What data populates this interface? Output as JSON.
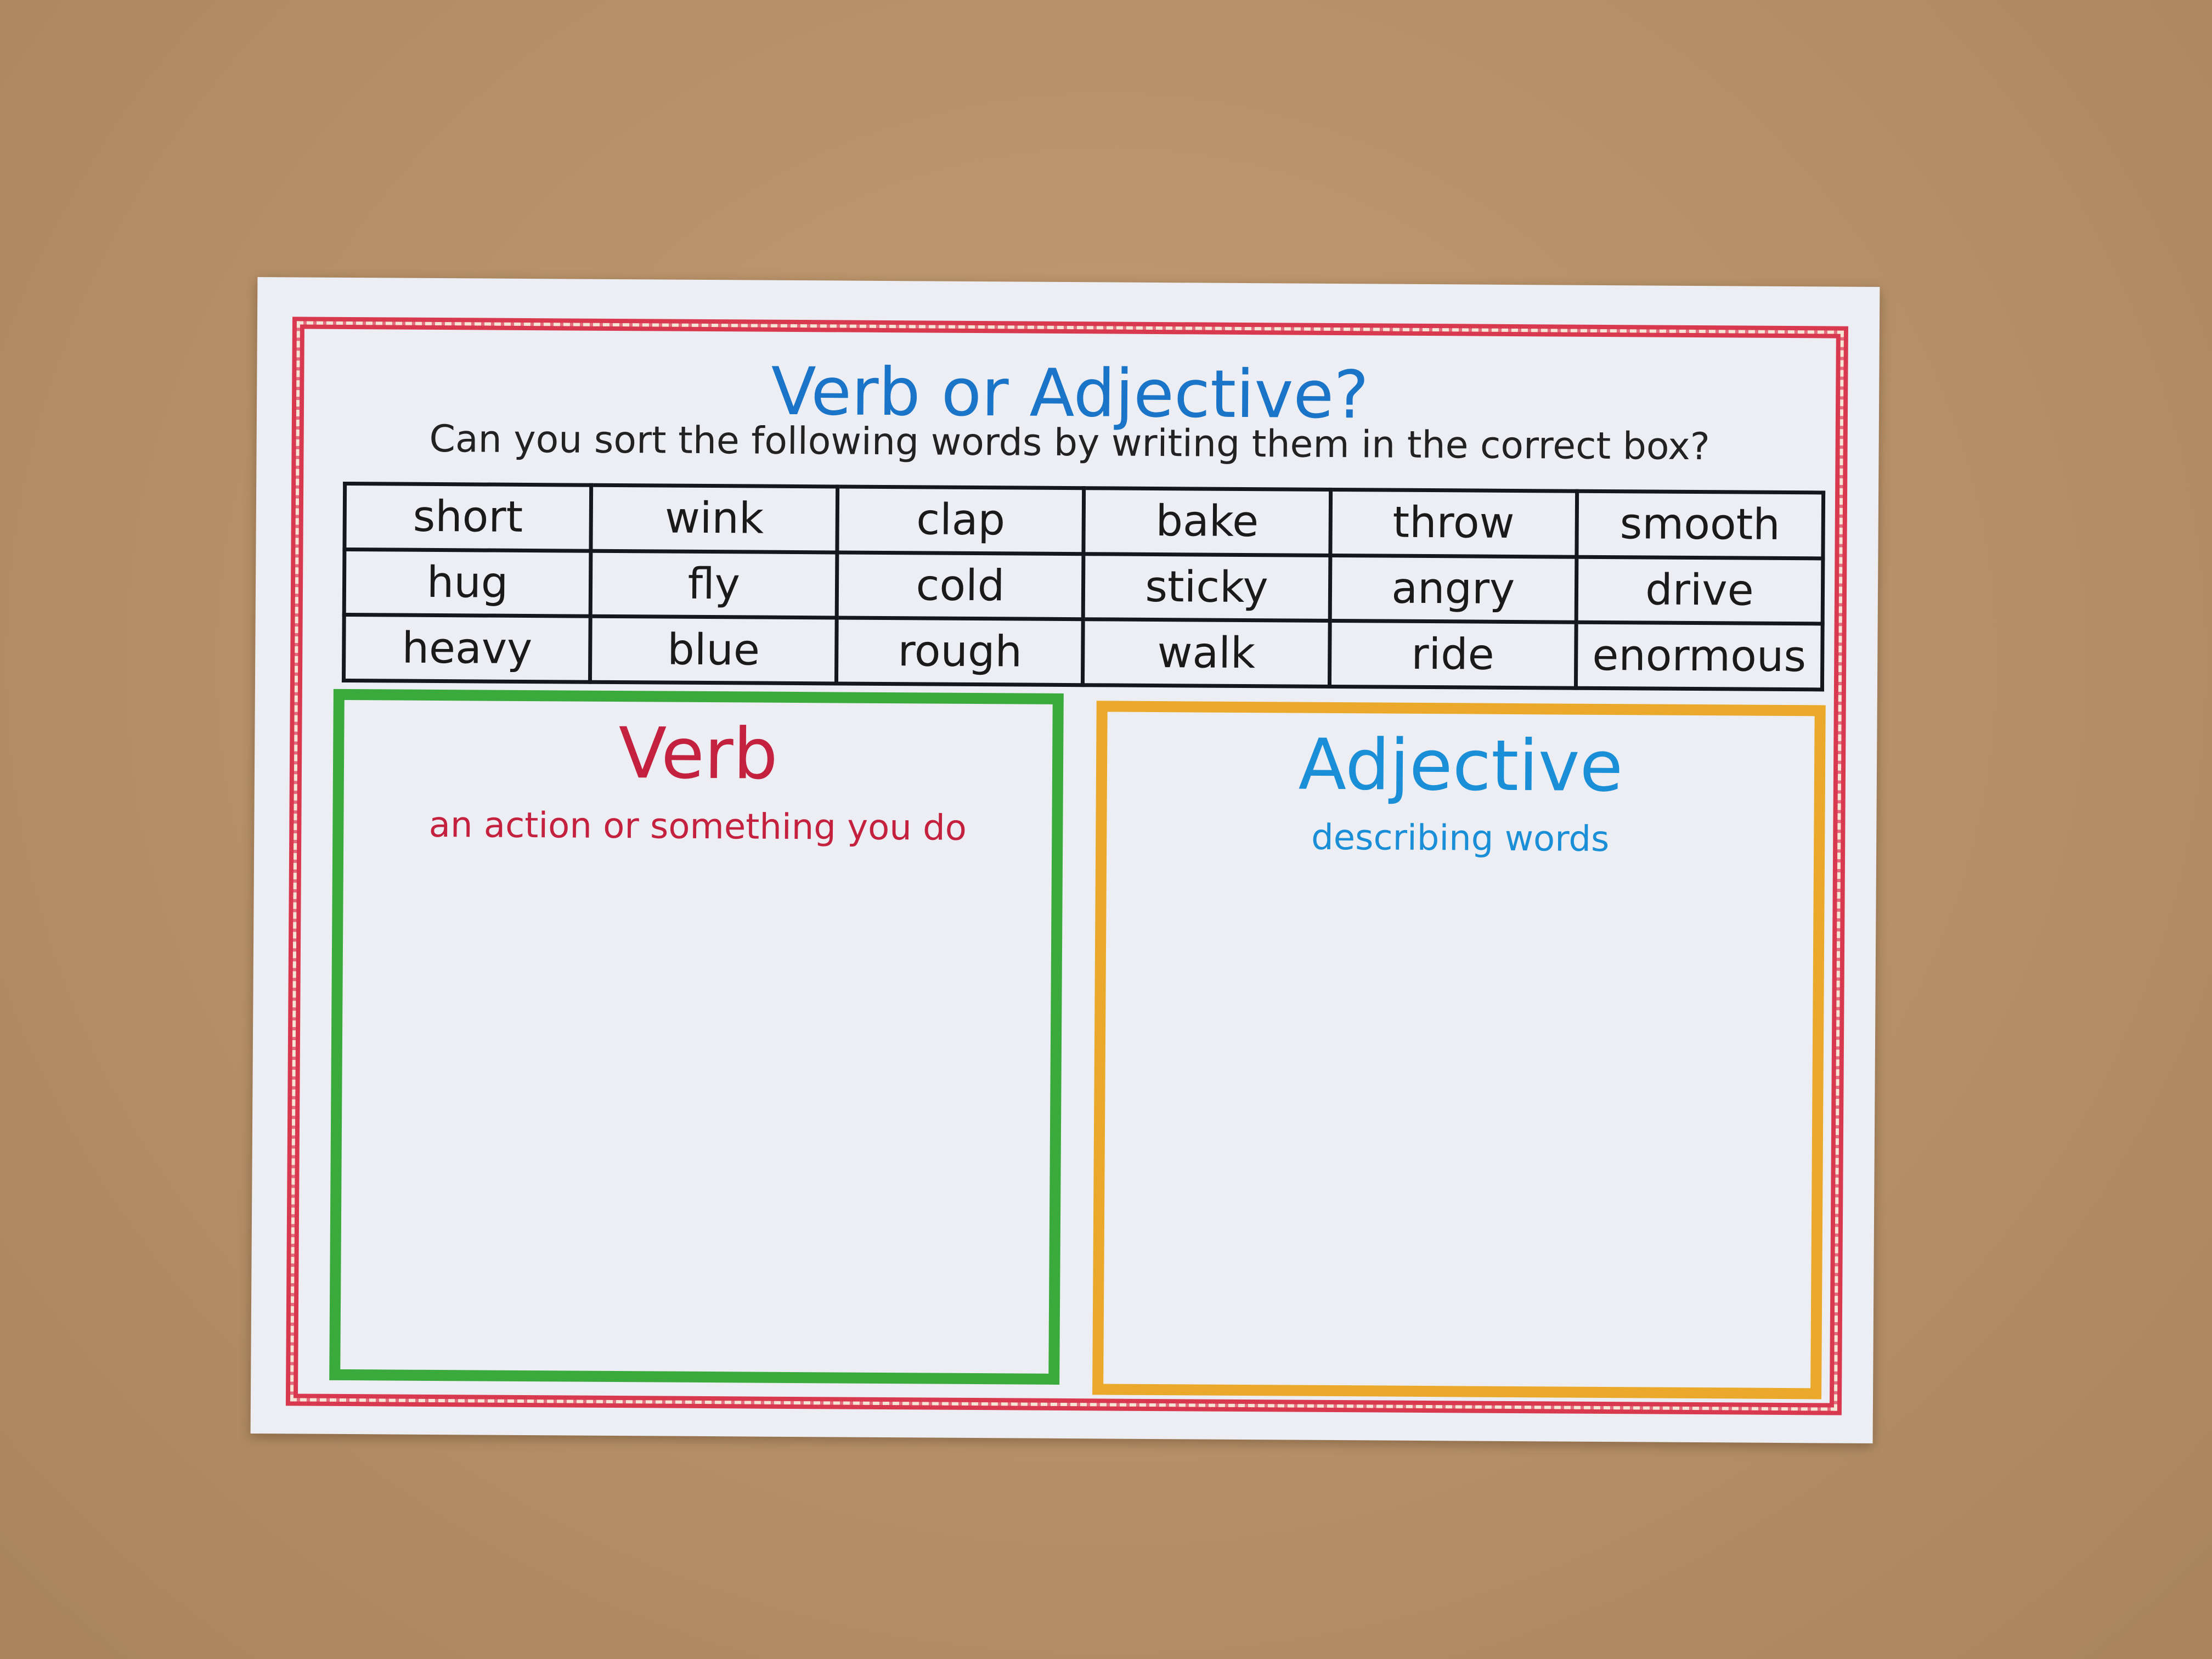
{
  "worksheet": {
    "title": "Verb or Adjective?",
    "instruction": "Can you sort the following words by writing them in the correct box?",
    "words": [
      [
        "short",
        "wink",
        "clap",
        "bake",
        "throw",
        "smooth"
      ],
      [
        "hug",
        "fly",
        "cold",
        "sticky",
        "angry",
        "drive"
      ],
      [
        "heavy",
        "blue",
        "rough",
        "walk",
        "ride",
        "enormous"
      ]
    ],
    "verb_box": {
      "heading": "Verb",
      "description": "an action or something you do",
      "color": "#3aaa3c"
    },
    "adjective_box": {
      "heading": "Adjective",
      "description": "describing words",
      "color": "#eaa92a"
    },
    "colors": {
      "border": "#d8394f",
      "title": "#1a74c8",
      "verb_text": "#c4213f",
      "adjective_text": "#1a8fd8"
    }
  }
}
